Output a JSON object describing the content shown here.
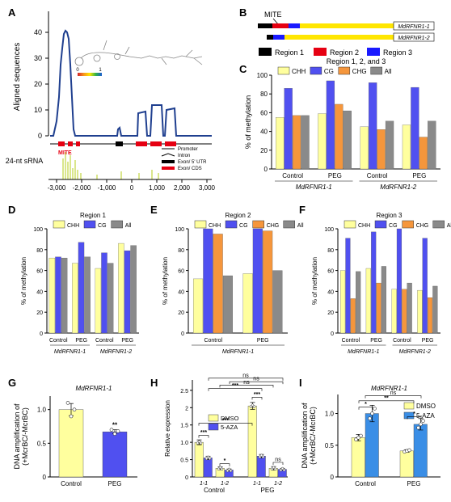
{
  "panel_labels": [
    "A",
    "B",
    "C",
    "D",
    "E",
    "F",
    "G",
    "H",
    "I"
  ],
  "panel_a": {
    "ylabel": "Aligned sequences",
    "yticks": [
      0,
      10,
      20,
      30,
      40
    ],
    "xticks": [
      "-3,000",
      "-2,000",
      "-1,000",
      "0",
      "1,000",
      "2,000",
      "3,000"
    ],
    "sirna_label": "24-nt sRNA",
    "mite_label": "MITE",
    "legend": [
      "Promoter",
      "Intron",
      "Exon/ 5' UTR",
      "Exon/ CDS"
    ],
    "heat_ticks": [
      "0",
      "1"
    ],
    "colors": {
      "coverage": "#1f3f8f",
      "exon": "#e60012",
      "sirna": "#b5cc1a"
    }
  },
  "panel_b": {
    "mite_label": "MITE",
    "genes": [
      "MdRFNR1-1",
      "MdRFNR1-2"
    ],
    "regions": [
      "Region 1",
      "Region 2",
      "Region 3"
    ],
    "colors": {
      "region1": "#000000",
      "region2": "#e60012",
      "region3": "#1a1aff",
      "gene": "#ffe600"
    }
  },
  "series_colors": {
    "CHH": "#ffff9e",
    "CG": "#5050f0",
    "CHG": "#f5963c",
    "All": "#8a8a8a"
  },
  "gene_labels": [
    "MdRFNR1-1",
    "MdRFNR1-2"
  ],
  "chart_data": [
    {
      "panel": "C",
      "type": "bar",
      "title": "Region 1, 2, and 3",
      "categories": [
        "Control",
        "PEG",
        "Control",
        "PEG"
      ],
      "ylabel": "% of methylation",
      "ylim": [
        0,
        100
      ],
      "series": [
        {
          "name": "CHH",
          "values": [
            55,
            59,
            45,
            47
          ]
        },
        {
          "name": "CG",
          "values": [
            86,
            94,
            92,
            87
          ]
        },
        {
          "name": "CHG",
          "values": [
            57,
            69,
            42,
            34
          ]
        },
        {
          "name": "All",
          "values": [
            57,
            62,
            51,
            51
          ]
        }
      ]
    },
    {
      "panel": "D",
      "type": "bar",
      "title": "Region 1",
      "categories": [
        "Control",
        "PEG",
        "Control",
        "PEG"
      ],
      "ylabel": "% of methylation",
      "ylim": [
        0,
        100
      ],
      "series": [
        {
          "name": "CHH",
          "values": [
            72,
            67,
            62,
            86
          ]
        },
        {
          "name": "CG",
          "values": [
            73,
            87,
            77,
            79
          ]
        },
        {
          "name": "All",
          "values": [
            72,
            73,
            67,
            84
          ]
        }
      ]
    },
    {
      "panel": "E",
      "type": "bar",
      "title": "Region 2",
      "categories": [
        "Control",
        "PEG"
      ],
      "ylabel": "% of methylation",
      "ylim": [
        0,
        100
      ],
      "series": [
        {
          "name": "CHH",
          "values": [
            52,
            57
          ]
        },
        {
          "name": "CG",
          "values": [
            100,
            100
          ]
        },
        {
          "name": "CHG",
          "values": [
            95,
            98
          ]
        },
        {
          "name": "All",
          "values": [
            55,
            60
          ]
        }
      ]
    },
    {
      "panel": "F",
      "type": "bar",
      "title": "Region 3",
      "categories": [
        "Control",
        "PEG",
        "Control",
        "PEG"
      ],
      "ylabel": "% of methylation",
      "ylim": [
        0,
        100
      ],
      "series": [
        {
          "name": "CHH",
          "values": [
            60,
            62,
            42,
            41
          ]
        },
        {
          "name": "CG",
          "values": [
            91,
            97,
            100,
            91
          ]
        },
        {
          "name": "CHG",
          "values": [
            33,
            48,
            42,
            34
          ]
        },
        {
          "name": "All",
          "values": [
            59,
            64,
            48,
            45
          ]
        }
      ]
    },
    {
      "panel": "G",
      "type": "bar",
      "title": "MdRFNR1-1",
      "categories": [
        "Control",
        "PEG"
      ],
      "ylabel": "DNA amplification of (+McrBC/-McrBC)",
      "ylim": [
        0,
        1.2
      ],
      "yticks": [
        0,
        0.5,
        1.0
      ],
      "values": [
        1.0,
        0.67
      ],
      "errors": [
        0.09,
        0.03
      ],
      "points": [
        [
          1.1,
          0.9,
          1.0
        ],
        [
          0.7,
          0.64,
          0.68
        ]
      ],
      "colors": [
        "#ffff9e",
        "#5050f0"
      ],
      "annotations": [
        "",
        "**"
      ]
    },
    {
      "panel": "H",
      "type": "bar",
      "categories": [
        "1-1",
        "1-2",
        "1-1",
        "1-2"
      ],
      "groups": [
        "Control",
        "PEG"
      ],
      "ylabel": "Relative expression",
      "ylim": [
        0,
        2.8
      ],
      "yticks": [
        0,
        0.5,
        1.0,
        1.5,
        2.0,
        2.5
      ],
      "series": [
        {
          "name": "DMSO",
          "values": [
            1.0,
            0.25,
            2.05,
            0.25
          ],
          "errors": [
            0.07,
            0.04,
            0.1,
            0.05
          ]
        },
        {
          "name": "5-AZA",
          "values": [
            0.55,
            0.2,
            0.6,
            0.22
          ],
          "errors": [
            0.05,
            0.03,
            0.05,
            0.03
          ]
        }
      ],
      "significance": [
        "***",
        "*",
        "***",
        "ns",
        "***",
        "***",
        "ns",
        "ns",
        "ns"
      ]
    },
    {
      "panel": "I",
      "type": "bar",
      "title": "MdRFNR1-1",
      "categories": [
        "Control",
        "PEG"
      ],
      "ylabel": "DNA amplification of (+McrBC/-McrBC)",
      "ylim": [
        0,
        1.3
      ],
      "yticks": [
        0,
        0.5,
        1.0
      ],
      "series": [
        {
          "name": "DMSO",
          "values": [
            0.62,
            0.41
          ],
          "errors": [
            0.05,
            0.02
          ]
        },
        {
          "name": "5-AZA",
          "values": [
            1.0,
            0.83
          ],
          "errors": [
            0.13,
            0.09
          ]
        }
      ],
      "significance": [
        "*",
        "*",
        "**",
        "ns"
      ]
    }
  ]
}
